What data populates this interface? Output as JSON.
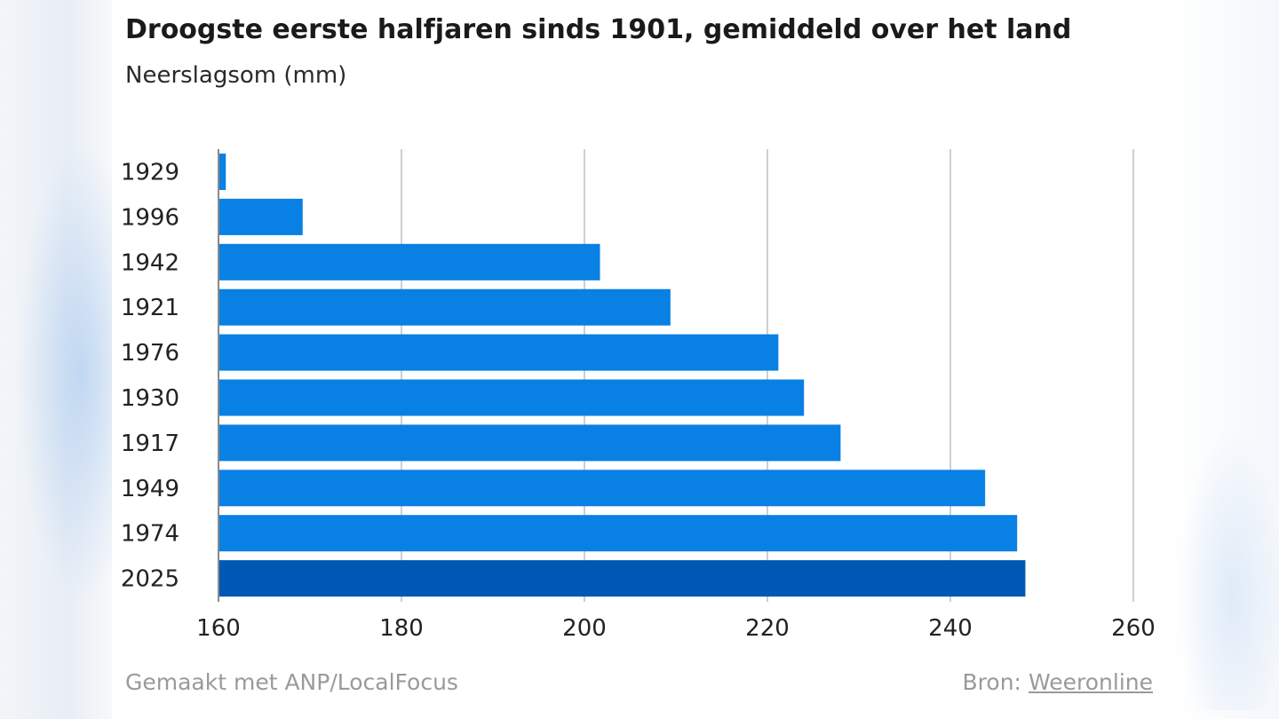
{
  "header": {
    "title": "Droogste eerste halfjaren sinds 1901, gemiddeld over het land",
    "subtitle": "Neerslagsom (mm)"
  },
  "footer": {
    "made_with": "Gemaakt met ANP/LocalFocus",
    "source_label": "Bron:",
    "source_link": "Weeronline"
  },
  "chart_data": {
    "type": "bar",
    "orientation": "horizontal",
    "title": "Droogste eerste halfjaren sinds 1901, gemiddeld over het land",
    "subtitle": "Neerslagsom (mm)",
    "categories": [
      "1929",
      "1996",
      "1942",
      "1921",
      "1976",
      "1930",
      "1917",
      "1949",
      "1974",
      "2025"
    ],
    "values": [
      160.8,
      169.2,
      201.7,
      209.4,
      221.2,
      224.0,
      228.0,
      243.8,
      247.3,
      248.2
    ],
    "xlim": [
      160,
      260
    ],
    "xticks": [
      160,
      180,
      200,
      220,
      240,
      260
    ],
    "grid": "vertical",
    "colors": {
      "bar": "#0880e4",
      "highlight": "#0158b4",
      "grid": "#cfcfcf",
      "text": "#222222"
    },
    "highlight_category": "2025"
  }
}
